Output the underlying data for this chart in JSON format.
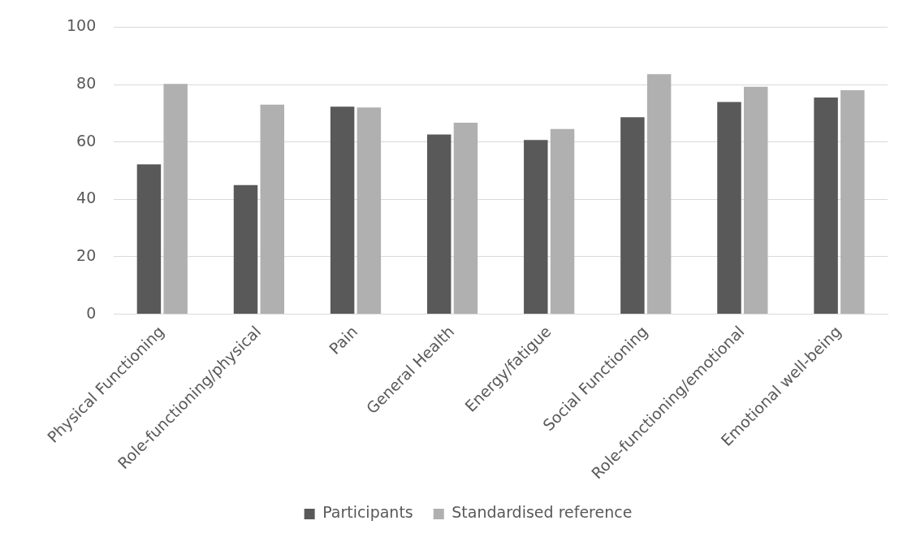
{
  "chart_data": {
    "type": "bar",
    "categories": [
      "Physical Functioning",
      "Role-functioning/physical",
      "Pain",
      "General Health",
      "Energy/fatigue",
      "Social Functioning",
      "Role-functioning/emotional",
      "Emotional well-being"
    ],
    "series": [
      {
        "name": "Participants",
        "color": "#595959",
        "values": [
          52.2,
          45,
          72.3,
          62.6,
          60.7,
          68.6,
          73.9,
          75.5
        ]
      },
      {
        "name": "Standardised reference",
        "color": "#b0b0b0",
        "values": [
          80.2,
          73,
          72,
          66.7,
          64.5,
          83.6,
          79.2,
          78
        ]
      }
    ],
    "ylim": [
      0,
      100
    ],
    "yticks": [
      0,
      20,
      40,
      60,
      80,
      100
    ],
    "grid": "y",
    "legend": "bottom"
  }
}
